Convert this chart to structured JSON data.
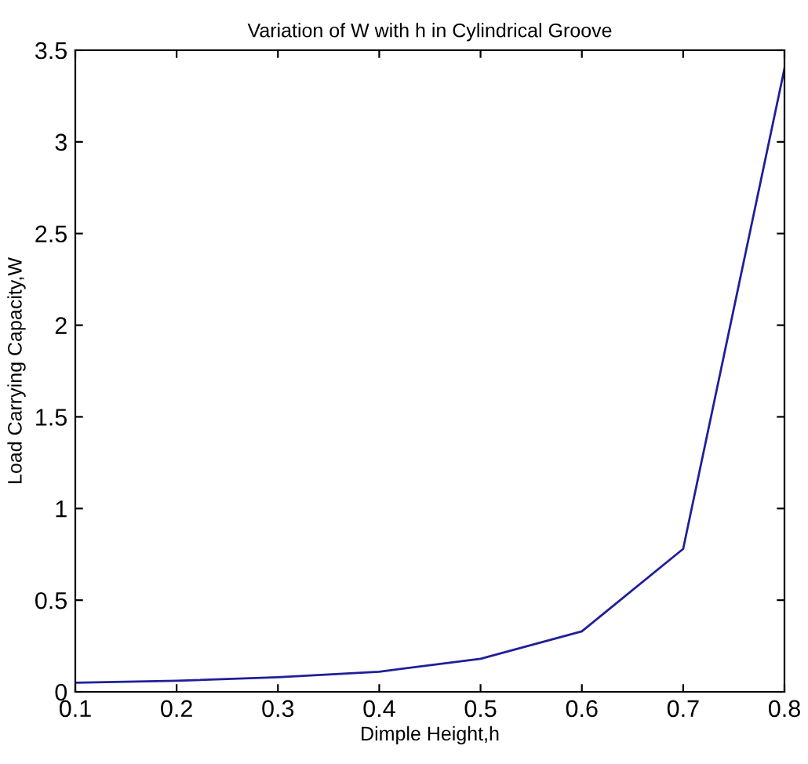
{
  "chart_data": {
    "type": "line",
    "title": "Variation of W with h in Cylindrical Groove",
    "xlabel": "Dimple Height,h",
    "ylabel": "Load Carrying Capacity,W",
    "x": [
      0.1,
      0.2,
      0.3,
      0.4,
      0.5,
      0.6,
      0.7,
      0.8
    ],
    "series": [
      {
        "color": "#1f1f9a",
        "values": [
          0.05,
          0.06,
          0.08,
          0.11,
          0.18,
          0.33,
          0.78,
          3.4
        ]
      }
    ],
    "xlim": [
      0.1,
      0.8
    ],
    "xticks": [
      0.1,
      0.2,
      0.3,
      0.4,
      0.5,
      0.6,
      0.7,
      0.8
    ],
    "ylim": [
      0,
      3.5
    ],
    "yticks": [
      0,
      0.5,
      1,
      1.5,
      2,
      2.5,
      3,
      3.5
    ],
    "grid": false,
    "legend": false
  }
}
